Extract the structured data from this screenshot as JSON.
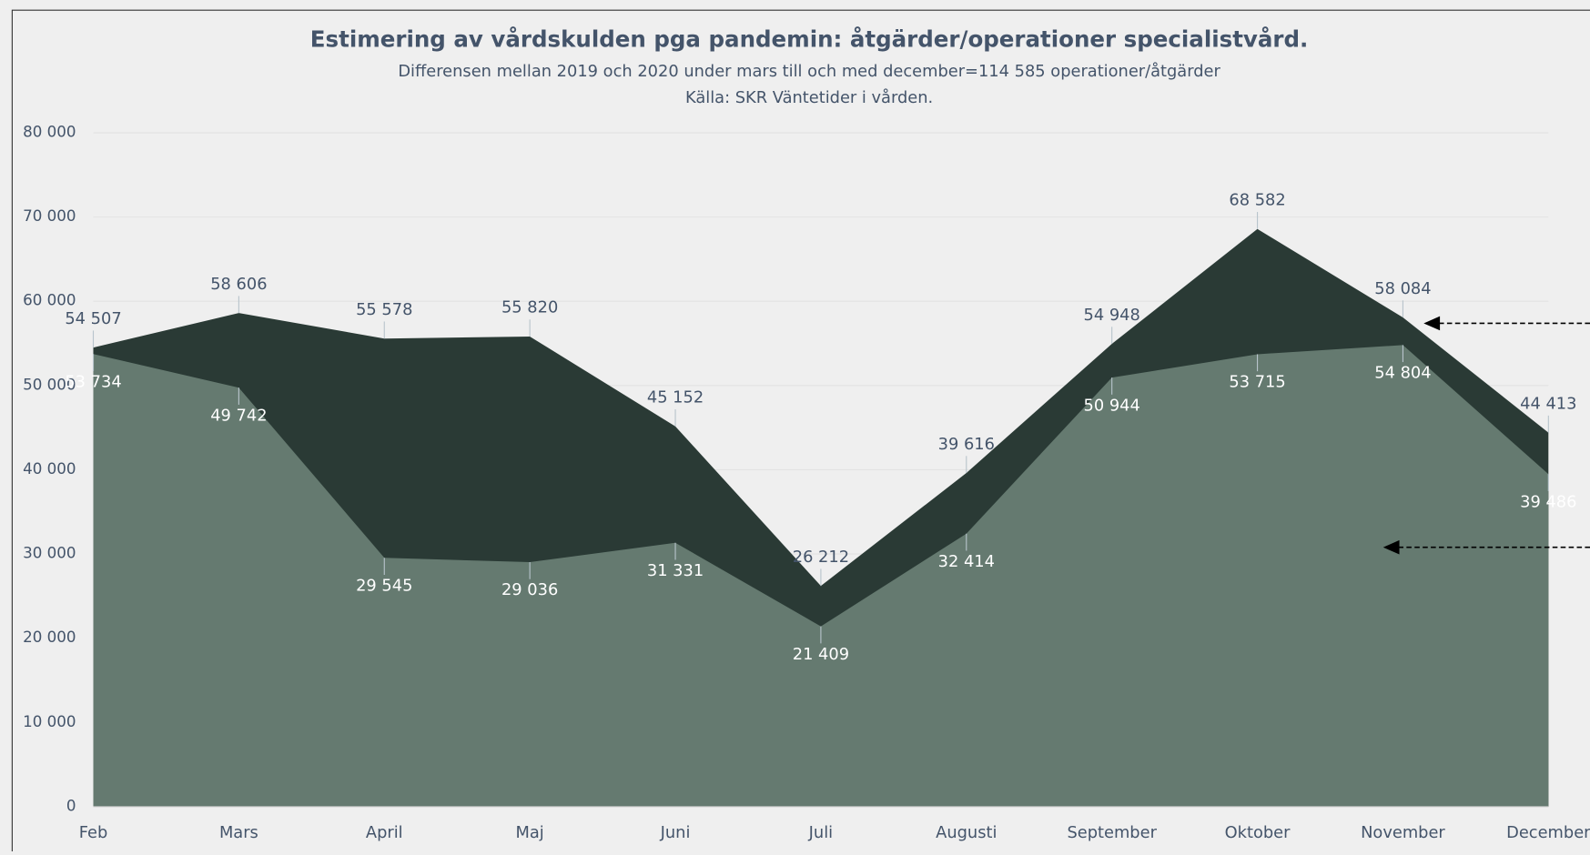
{
  "chart_data": {
    "type": "area",
    "title": "Estimering av vårdskulden pga pandemin: åtgärder/operationer specialistvård.",
    "subtitle": "Differensen mellan 2019 och 2020 under mars till och med december=114 585 operationer/åtgärder",
    "source": "Källa: SKR Väntetider i vården.",
    "categories": [
      "Feb",
      "Mars",
      "April",
      "Maj",
      "Juni",
      "Juli",
      "Augusti",
      "September",
      "Oktober",
      "November",
      "December"
    ],
    "series": [
      {
        "color": "#2a3a35",
        "values": [
          54507,
          58606,
          55578,
          55820,
          45152,
          26212,
          39616,
          54948,
          68582,
          58084,
          44413
        ],
        "value_labels": [
          "54 507",
          "58 606",
          "55 578",
          "55 820",
          "45 152",
          "26 212",
          "39 616",
          "54 948",
          "68 582",
          "58 084",
          "44 413"
        ]
      },
      {
        "color": "#657a70",
        "values": [
          53734,
          49742,
          29545,
          29036,
          31331,
          21409,
          32414,
          50944,
          53715,
          54804,
          39486
        ],
        "value_labels": [
          "53 734",
          "49 742",
          "29 545",
          "29 036",
          "31 331",
          "21 409",
          "32 414",
          "50 944",
          "53 715",
          "54 804",
          "39 486"
        ]
      }
    ],
    "ylim": [
      0,
      80000
    ],
    "yticks": [
      0,
      {
        "value": 10000,
        "label": "10 000"
      },
      {
        "value": 20000,
        "label": "20 000"
      },
      {
        "value": 30000,
        "label": "30 000"
      },
      {
        "value": 40000,
        "label": "40 000"
      },
      {
        "value": 50000,
        "label": "50 000"
      },
      {
        "value": 60000,
        "label": "60 000"
      },
      {
        "value": 70000,
        "label": "70 000"
      },
      {
        "value": 80000,
        "label": "80 000"
      }
    ],
    "grid": true
  }
}
